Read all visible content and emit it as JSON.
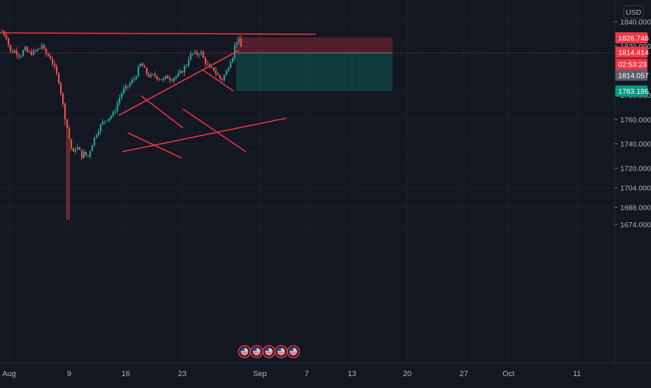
{
  "chart_data": {
    "type": "candlestick",
    "currency": "USD",
    "y_axis": {
      "range": [
        1664,
        1846
      ],
      "ticks": [
        "1840.000",
        "1820.000",
        "1780.000",
        "1760.000",
        "1740.000",
        "1720.000",
        "1704.000",
        "1688.000",
        "1674.000"
      ],
      "tick_values": [
        1840,
        1820,
        1780,
        1760,
        1740,
        1720,
        1704,
        1688,
        1674
      ]
    },
    "x_axis": {
      "ticks": [
        "Aug",
        "9",
        "16",
        "23",
        "Sep",
        "7",
        "13",
        "20",
        "27",
        "Oct",
        "11"
      ]
    },
    "price_labels": [
      {
        "text": "1826.746",
        "value": 1826.746,
        "color": "#f23645"
      },
      {
        "text": "1814.414",
        "value": 1814.414,
        "color": "#f23645"
      },
      {
        "text": "02:53:23",
        "value": 1811.0,
        "color": "#f23645"
      },
      {
        "text": "1814.057",
        "value": 1814.057,
        "color": "#5d606b"
      },
      {
        "text": "1783.186",
        "value": 1783.186,
        "color": "#089981"
      }
    ],
    "last_price": 1814.414,
    "position": {
      "entry": 1814.414,
      "stop": 1826.746,
      "target": 1783.186,
      "stop_color": "#f23645",
      "target_color": "#089981"
    },
    "event_markers": 5,
    "colors": {
      "up": "#26a69a",
      "down": "#ef5350",
      "trendline": "#f23645",
      "background": "#131722"
    }
  }
}
